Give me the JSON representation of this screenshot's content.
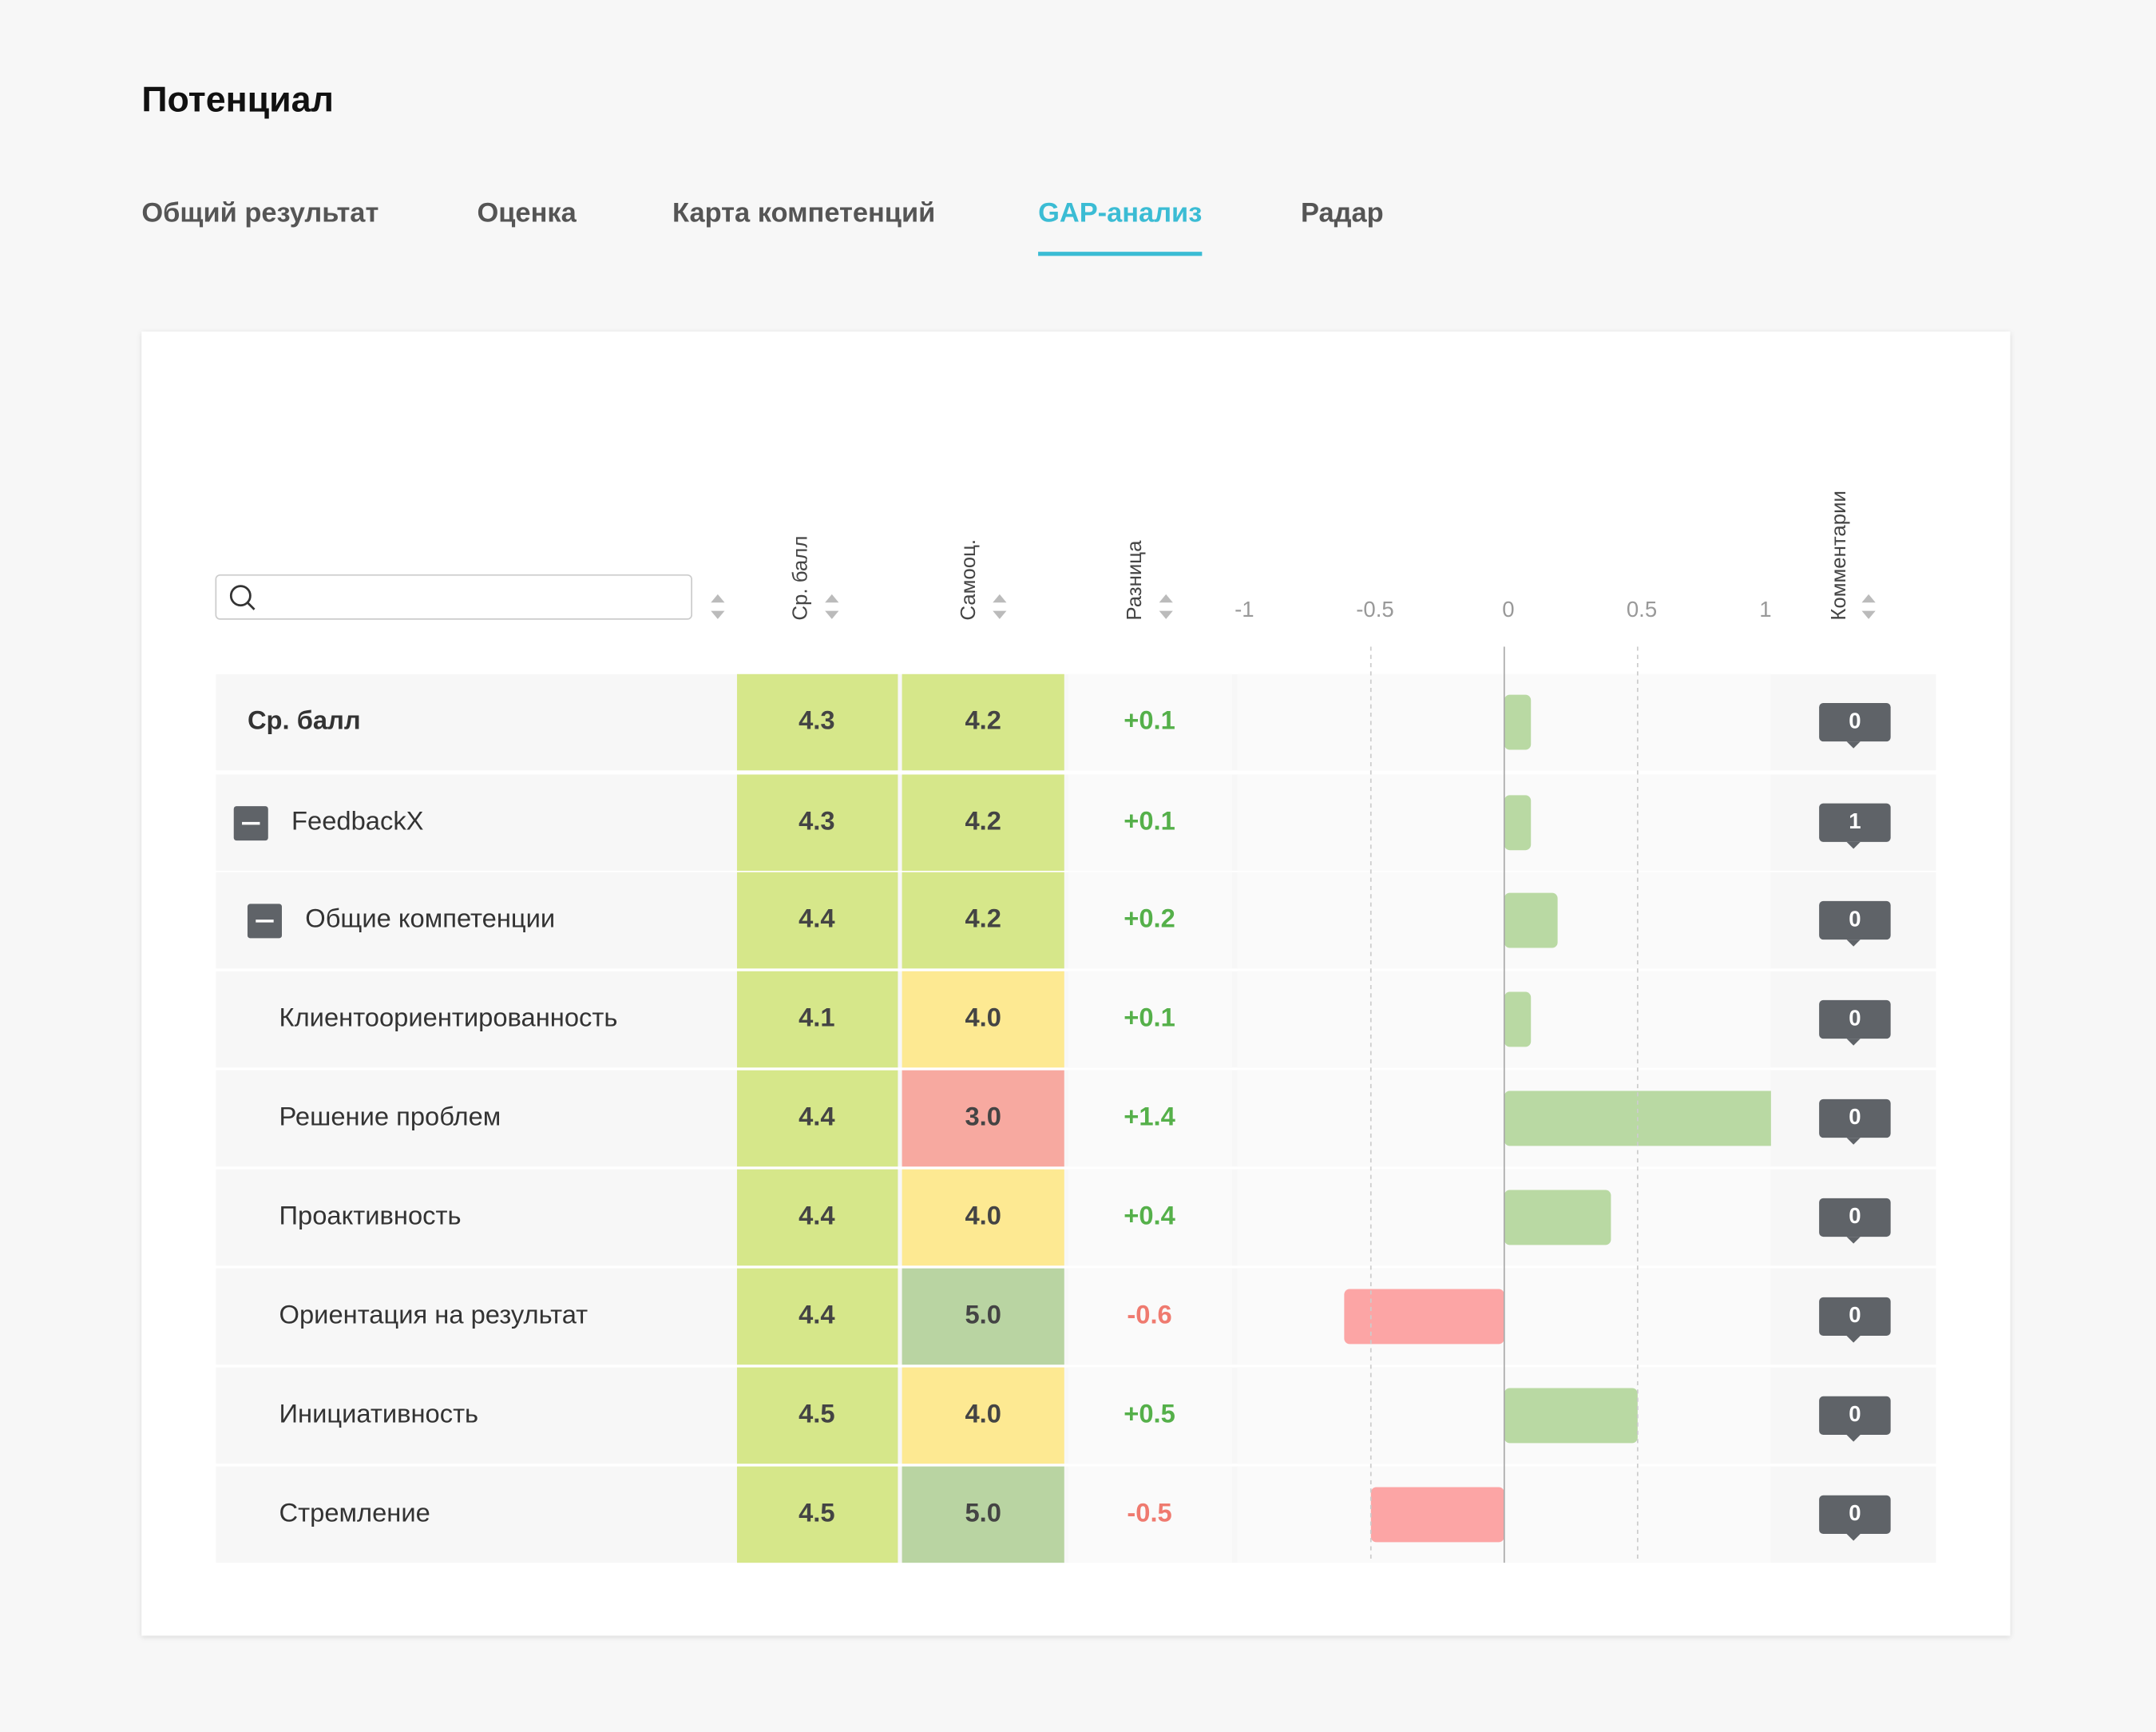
{
  "header": {
    "title": "Потенциал"
  },
  "tabs": {
    "items": [
      "Общий результат",
      "Оценка",
      "Карта компетенций",
      "GAP-анализ",
      "Радар"
    ],
    "active": 3
  },
  "table": {
    "headers": {
      "avg": "Ср. балл",
      "self": "Самооц.",
      "diff": "Разница",
      "comments": "Комментарии"
    },
    "rows": [
      {
        "name": "Ср. балл",
        "avg": "4.3",
        "avg_color": "#d6e78a",
        "self": "4.2",
        "self_color": "#d6e78a",
        "diff": 0.1,
        "diff_label": "+0.1",
        "comments": "0"
      },
      {
        "name": "FeedbackX",
        "avg": "4.3",
        "avg_color": "#d6e78a",
        "self": "4.2",
        "self_color": "#d6e78a",
        "diff": 0.1,
        "diff_label": "+0.1",
        "comments": "1"
      },
      {
        "name": "Общие компетенции",
        "avg": "4.4",
        "avg_color": "#d6e78a",
        "self": "4.2",
        "self_color": "#d6e78a",
        "diff": 0.2,
        "diff_label": "+0.2",
        "comments": "0"
      },
      {
        "name": "Клиентоориентированность",
        "avg": "4.1",
        "avg_color": "#d6e78a",
        "self": "4.0",
        "self_color": "#fde992",
        "diff": 0.1,
        "diff_label": "+0.1",
        "comments": "0"
      },
      {
        "name": "Решение проблем",
        "avg": "4.4",
        "avg_color": "#d6e78a",
        "self": "3.0",
        "self_color": "#f7a9a0",
        "diff": 1.4,
        "diff_label": "+1.4",
        "comments": "0"
      },
      {
        "name": "Проактивность",
        "avg": "4.4",
        "avg_color": "#d6e78a",
        "self": "4.0",
        "self_color": "#fde992",
        "diff": 0.4,
        "diff_label": "+0.4",
        "comments": "0"
      },
      {
        "name": "Ориентация на результат",
        "avg": "4.4",
        "avg_color": "#d6e78a",
        "self": "5.0",
        "self_color": "#b9d4a2",
        "diff": -0.6,
        "diff_label": "-0.6",
        "comments": "0"
      },
      {
        "name": "Инициативность",
        "avg": "4.5",
        "avg_color": "#d6e78a",
        "self": "4.0",
        "self_color": "#fde992",
        "diff": 0.5,
        "diff_label": "+0.5",
        "comments": "0"
      },
      {
        "name": "Стремление",
        "avg": "4.5",
        "avg_color": "#d6e78a",
        "self": "5.0",
        "self_color": "#b9d4a2",
        "diff": -0.5,
        "diff_label": "-0.5",
        "comments": "0"
      }
    ]
  },
  "gap_chart": {
    "xlim": [
      -1,
      1
    ],
    "xticks": [
      -1,
      -0.5,
      0,
      0.5,
      1
    ],
    "positive_color": "#b9d9a3",
    "negative_color": "#fca5a5"
  }
}
